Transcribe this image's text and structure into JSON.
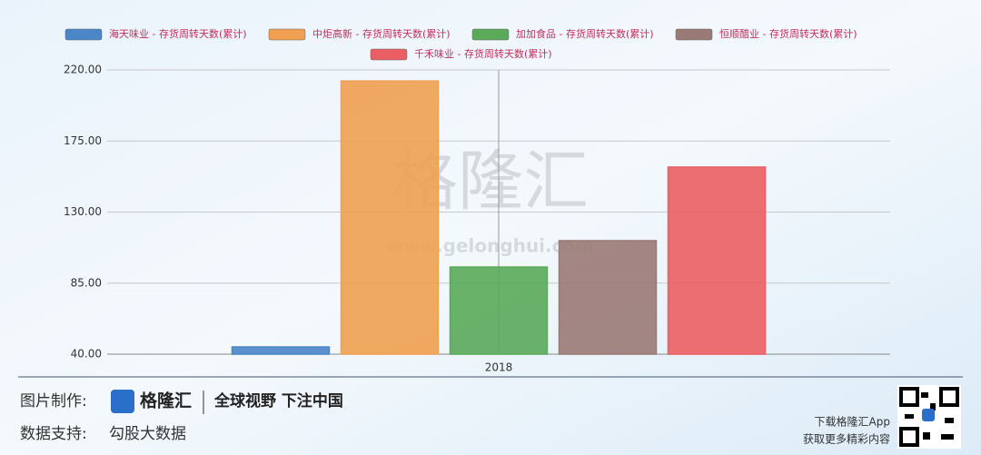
{
  "chart_data": {
    "type": "bar",
    "categories": [
      "2018"
    ],
    "series": [
      {
        "name": "海天味业 - 存货周转天数(累计)",
        "color": "#4a86c8",
        "values": [
          44.6
        ]
      },
      {
        "name": "中炬高新 - 存货周转天数(累计)",
        "color": "#f0a050",
        "values": [
          213
        ]
      },
      {
        "name": "加加食品 - 存货周转天数(累计)",
        "color": "#5aaa5a",
        "values": [
          95.2
        ]
      },
      {
        "name": "恒顺醋业 - 存货周转天数(累计)",
        "color": "#9a7a76",
        "values": [
          111.9
        ]
      },
      {
        "name": "千禾味业 - 存货周转天数(累计)",
        "color": "#ea5f63",
        "values": [
          158.5
        ]
      }
    ],
    "ylim": [
      40,
      220
    ],
    "yticks": [
      {
        "value": 40,
        "label": "40.00"
      },
      {
        "value": 85,
        "label": "85.00"
      },
      {
        "value": 130,
        "label": "130.00"
      },
      {
        "value": 175,
        "label": "175.00"
      },
      {
        "value": 220,
        "label": "220.00"
      }
    ],
    "grid": true,
    "legend": "top"
  },
  "watermark": {
    "brand": "格隆汇",
    "url": "www.gelonghui.com"
  },
  "footer": {
    "made_by_label": "图片制作:",
    "brand": "格隆汇",
    "slogan": "全球视野 下注中国",
    "data_label": "数据支持:",
    "data_source": "勾股大数据",
    "app_line1": "下载格隆汇App",
    "app_line2": "获取更多精彩内容"
  }
}
